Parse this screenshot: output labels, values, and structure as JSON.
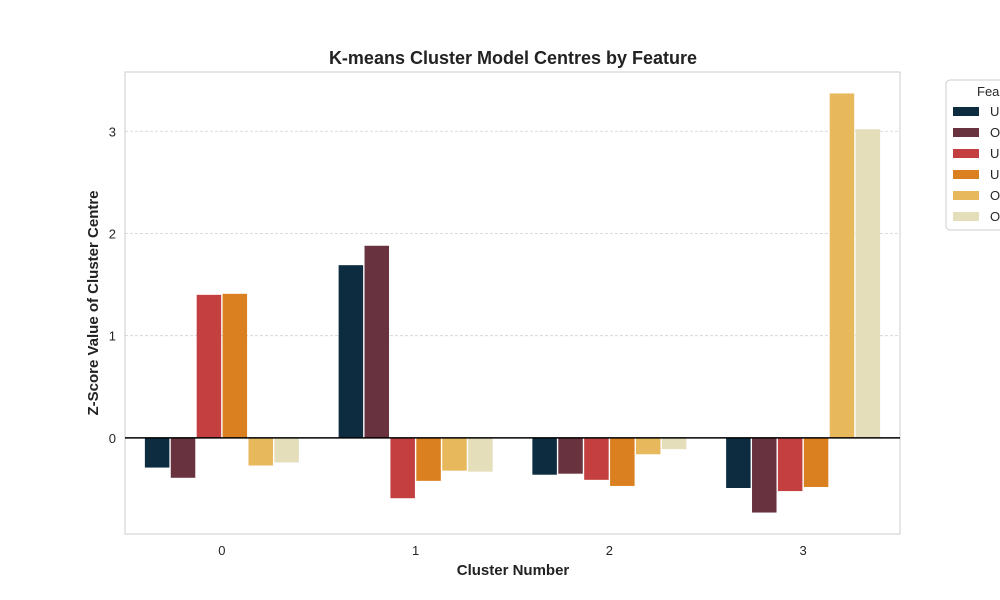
{
  "chart_data": {
    "type": "bar",
    "title": "K-means Cluster Model Centres by Feature",
    "xlabel": "Cluster Number",
    "ylabel": "Z-Score Value of Cluster Centre",
    "categories": [
      "0",
      "1",
      "2",
      "3"
    ],
    "ylim": [
      -0.94,
      3.58
    ],
    "yticks": [
      0,
      1,
      2,
      3
    ],
    "grid": true,
    "legend": {
      "title": "Fea",
      "placement": "outside-right"
    },
    "series": [
      {
        "name": "U",
        "color": "#0d2c40",
        "values": [
          -0.29,
          1.69,
          -0.36,
          -0.49
        ]
      },
      {
        "name": "O",
        "color": "#68323f",
        "values": [
          -0.39,
          1.88,
          -0.35,
          -0.73
        ]
      },
      {
        "name": "U",
        "color": "#c44040",
        "values": [
          1.4,
          -0.59,
          -0.41,
          -0.52
        ]
      },
      {
        "name": "U",
        "color": "#db8020",
        "values": [
          1.41,
          -0.42,
          -0.47,
          -0.48
        ]
      },
      {
        "name": "O",
        "color": "#e8b85c",
        "values": [
          -0.27,
          -0.32,
          -0.16,
          3.37
        ]
      },
      {
        "name": "O",
        "color": "#e4debb",
        "values": [
          -0.24,
          -0.33,
          -0.11,
          3.02
        ]
      }
    ]
  }
}
